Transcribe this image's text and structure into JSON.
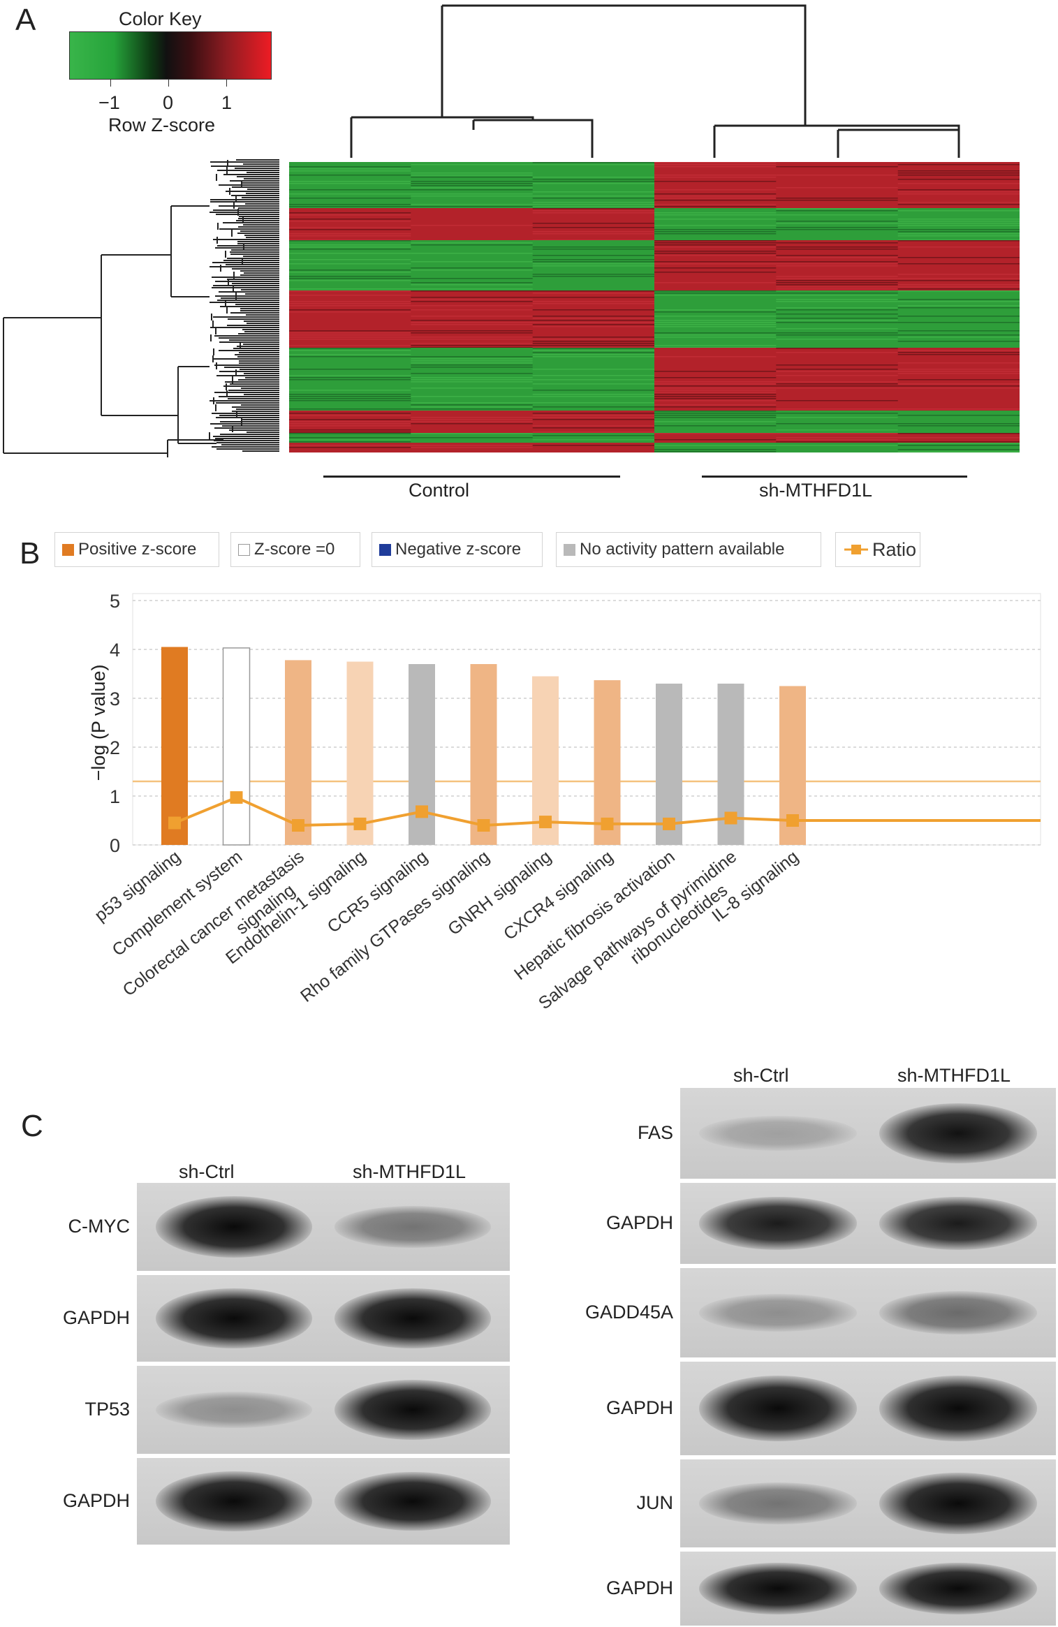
{
  "panelA": {
    "letter": "A",
    "color_key": {
      "title": "Color Key",
      "ticks": [
        "−1",
        "0",
        "1"
      ],
      "xlabel": "Row Z-score",
      "colors": {
        "low": "#39b54a",
        "mid": "#111111",
        "high": "#ed1c24"
      }
    },
    "groups": [
      "Control",
      "sh-MTHFD1L"
    ],
    "colors": {
      "green": "#2e9e3a",
      "red": "#b3222a"
    }
  },
  "panelB": {
    "letter": "B",
    "legend": [
      {
        "label": "Positive z-score",
        "color": "#e07b22"
      },
      {
        "label": "Z-score =0",
        "color": "#ffffff"
      },
      {
        "label": "Negative z-score",
        "color": "#1f3c9a"
      },
      {
        "label": "No activity pattern available",
        "color": "#b9b9b9"
      },
      {
        "label": "Ratio",
        "color": "#f0a030"
      }
    ],
    "threshold_y": 1.3
  },
  "chart_data": {
    "type": "bar",
    "ylabel": "−log (P value)",
    "ylim": [
      0,
      5
    ],
    "yticks": [
      "0",
      "1",
      "2",
      "3",
      "4",
      "5"
    ],
    "categories": [
      "p53 signaling",
      "Complement system",
      "Colorectal cancer metastasis signaling",
      "Endothelin-1 signaling",
      "CCR5 signaling",
      "Rho family GTPases signaling",
      "GNRH signaling",
      "CXCR4 signaling",
      "Hepatic fibrosis activation",
      "Salvage pathways of pyrimidine ribonucleotides",
      "IL-8 signaling"
    ],
    "label_lines": [
      [
        "p53 signaling"
      ],
      [
        "Complement system"
      ],
      [
        "Colorectal cancer metastasis",
        "signaling"
      ],
      [
        "Endothelin-1 signaling"
      ],
      [
        "CCR5 signaling"
      ],
      [
        "Rho family GTPases signaling"
      ],
      [
        "GNRH signaling"
      ],
      [
        "CXCR4 signaling"
      ],
      [
        "Hepatic fibrosis activation"
      ],
      [
        "Salvage pathways of pyrimidine",
        "ribonucleotides"
      ],
      [
        "IL-8 signaling"
      ]
    ],
    "values": [
      4.05,
      4.03,
      3.78,
      3.75,
      3.7,
      3.7,
      3.45,
      3.37,
      3.3,
      3.3,
      3.25
    ],
    "bar_colors": [
      "#e07b22",
      "#ffffff",
      "#efb585",
      "#f7d3b4",
      "#b9b9b9",
      "#efb585",
      "#f7d3b4",
      "#efb585",
      "#b9b9b9",
      "#b9b9b9",
      "#efb585"
    ],
    "ratio": [
      0.45,
      0.97,
      0.4,
      0.43,
      0.68,
      0.4,
      0.47,
      0.43,
      0.43,
      0.55,
      0.5
    ],
    "grid": true
  },
  "panelC": {
    "letter": "C",
    "left": {
      "headers": [
        "sh-Ctrl",
        "sh-MTHFD1L"
      ],
      "rows": [
        {
          "label": "C-MYC",
          "b1": 1.0,
          "b2": 0.35
        },
        {
          "label": "GAPDH",
          "b1": 1.0,
          "b2": 1.0
        },
        {
          "label": "TP53",
          "b1": 0.2,
          "b2": 0.95
        },
        {
          "label": "GAPDH",
          "b1": 1.0,
          "b2": 0.95
        }
      ]
    },
    "right": {
      "headers": [
        "sh-Ctrl",
        "sh-MTHFD1L"
      ],
      "rows": [
        {
          "label": "FAS",
          "b1": 0.1,
          "b2": 0.9
        },
        {
          "label": "GAPDH",
          "b1": 0.85,
          "b2": 0.85
        },
        {
          "label": "GADD45A",
          "b1": 0.2,
          "b2": 0.4
        },
        {
          "label": "GAPDH",
          "b1": 1.0,
          "b2": 1.0
        },
        {
          "label": "JUN",
          "b1": 0.35,
          "b2": 1.0
        },
        {
          "label": "GAPDH",
          "b1": 1.0,
          "b2": 1.0
        }
      ]
    }
  }
}
